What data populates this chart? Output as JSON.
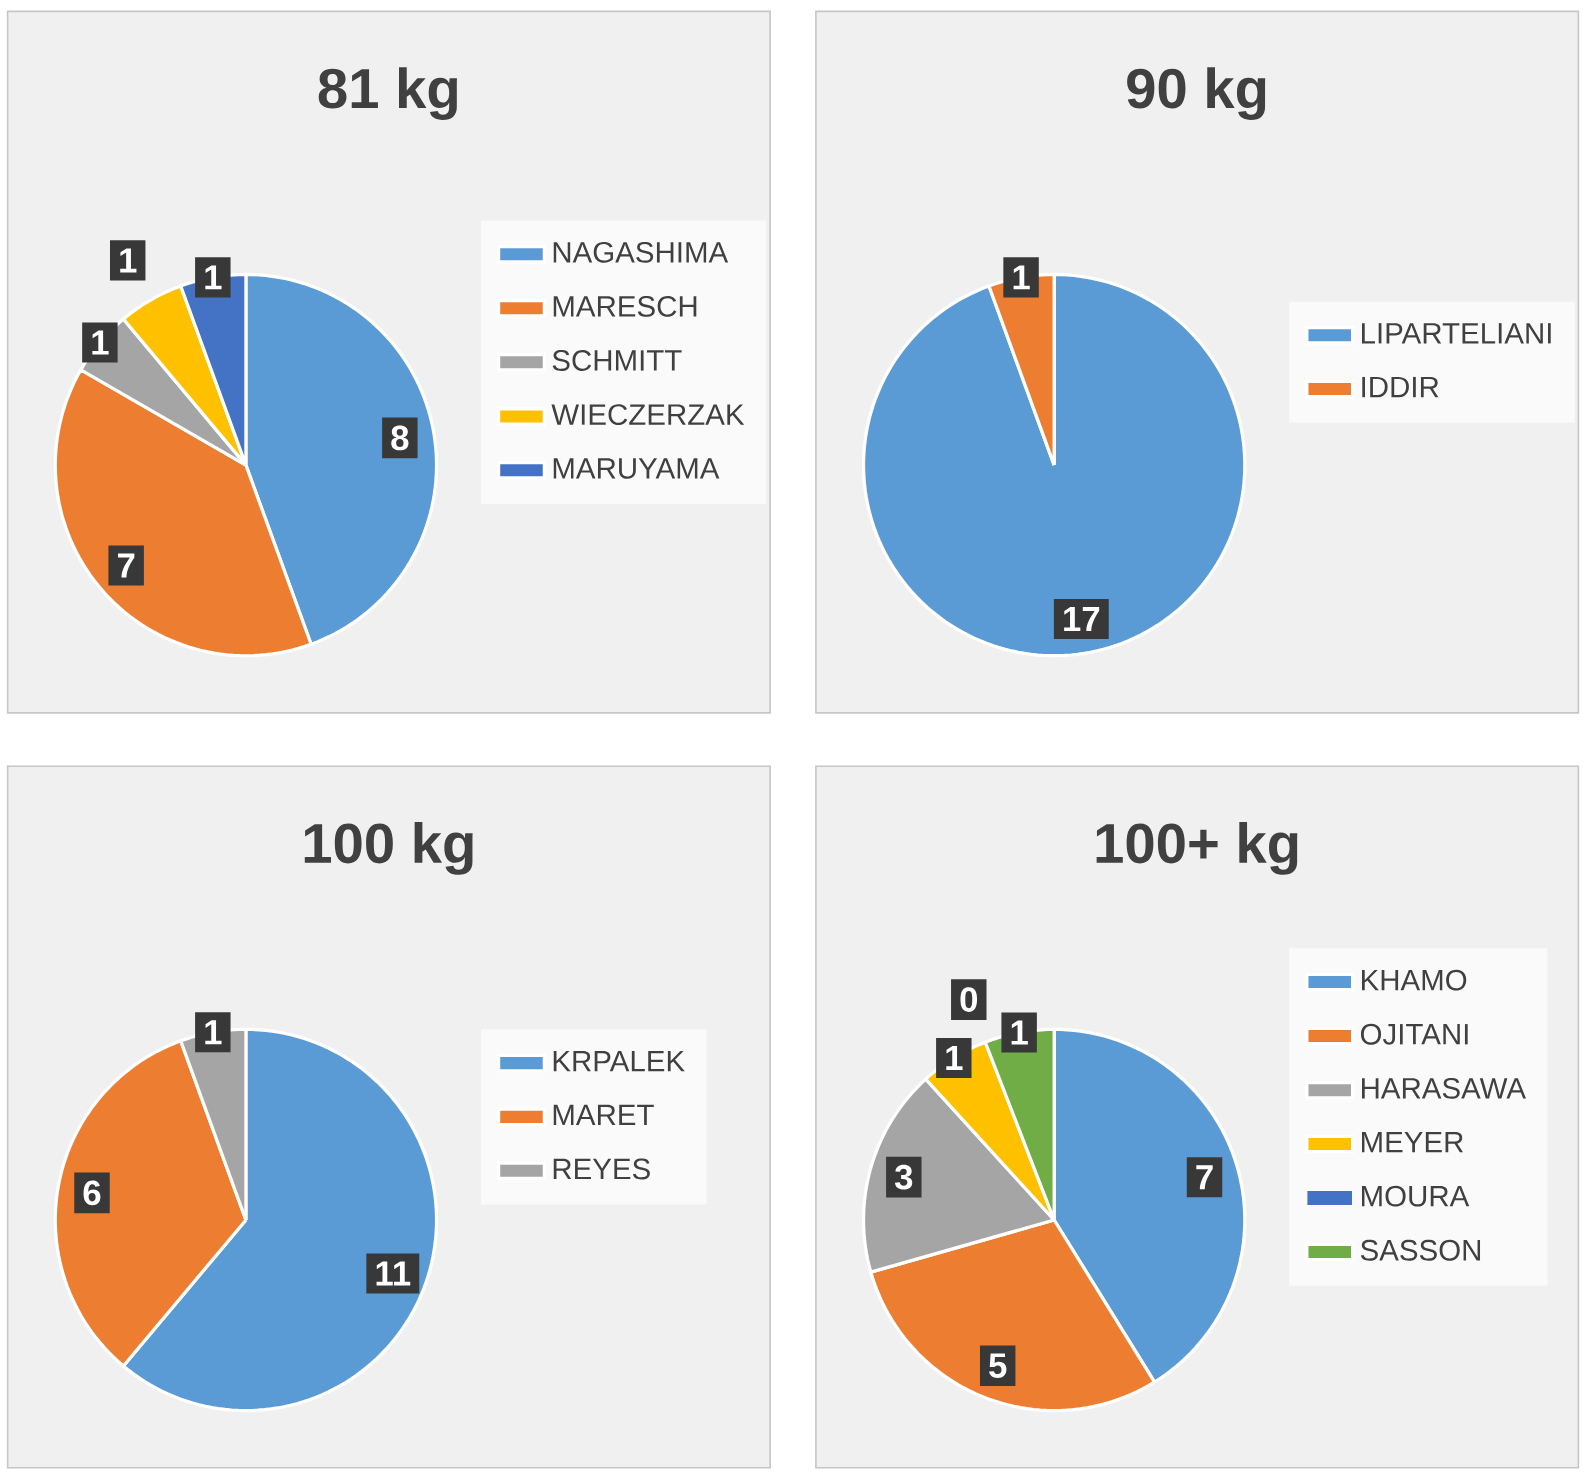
{
  "chart_data": [
    {
      "type": "pie",
      "title": "81 kg",
      "categories": [
        "NAGASHIMA",
        "MARESCH",
        "SCHMITT",
        "WIECZERZAK",
        "MARUYAMA"
      ],
      "values": [
        8,
        7,
        1,
        1,
        1
      ],
      "colors": [
        "#5b9bd5",
        "#ed7d31",
        "#a5a5a5",
        "#ffc000",
        "#4472c4"
      ],
      "data_labels": true,
      "legend": "right"
    },
    {
      "type": "pie",
      "title": "90 kg",
      "categories": [
        "LIPARTELIANI",
        "IDDIR"
      ],
      "values": [
        17,
        1
      ],
      "colors": [
        "#5b9bd5",
        "#ed7d31"
      ],
      "data_labels": true,
      "legend": "right"
    },
    {
      "type": "pie",
      "title": "100 kg",
      "categories": [
        "KRPALEK",
        "MARET",
        "REYES"
      ],
      "values": [
        11,
        6,
        1
      ],
      "colors": [
        "#5b9bd5",
        "#ed7d31",
        "#a5a5a5"
      ],
      "data_labels": true,
      "legend": "right"
    },
    {
      "type": "pie",
      "title": "100+ kg",
      "categories": [
        "KHAMO",
        "OJITANI",
        "HARASAWA",
        "MEYER",
        "MOURA",
        "SASSON"
      ],
      "values": [
        7,
        5,
        3,
        1,
        0,
        1
      ],
      "value_labels": [
        "7",
        "5",
        "3",
        "1",
        "0",
        "1"
      ],
      "colors": [
        "#5b9bd5",
        "#ed7d31",
        "#a5a5a5",
        "#ffc000",
        "#4472c4",
        "#70ad47"
      ],
      "legend": "right"
    }
  ]
}
